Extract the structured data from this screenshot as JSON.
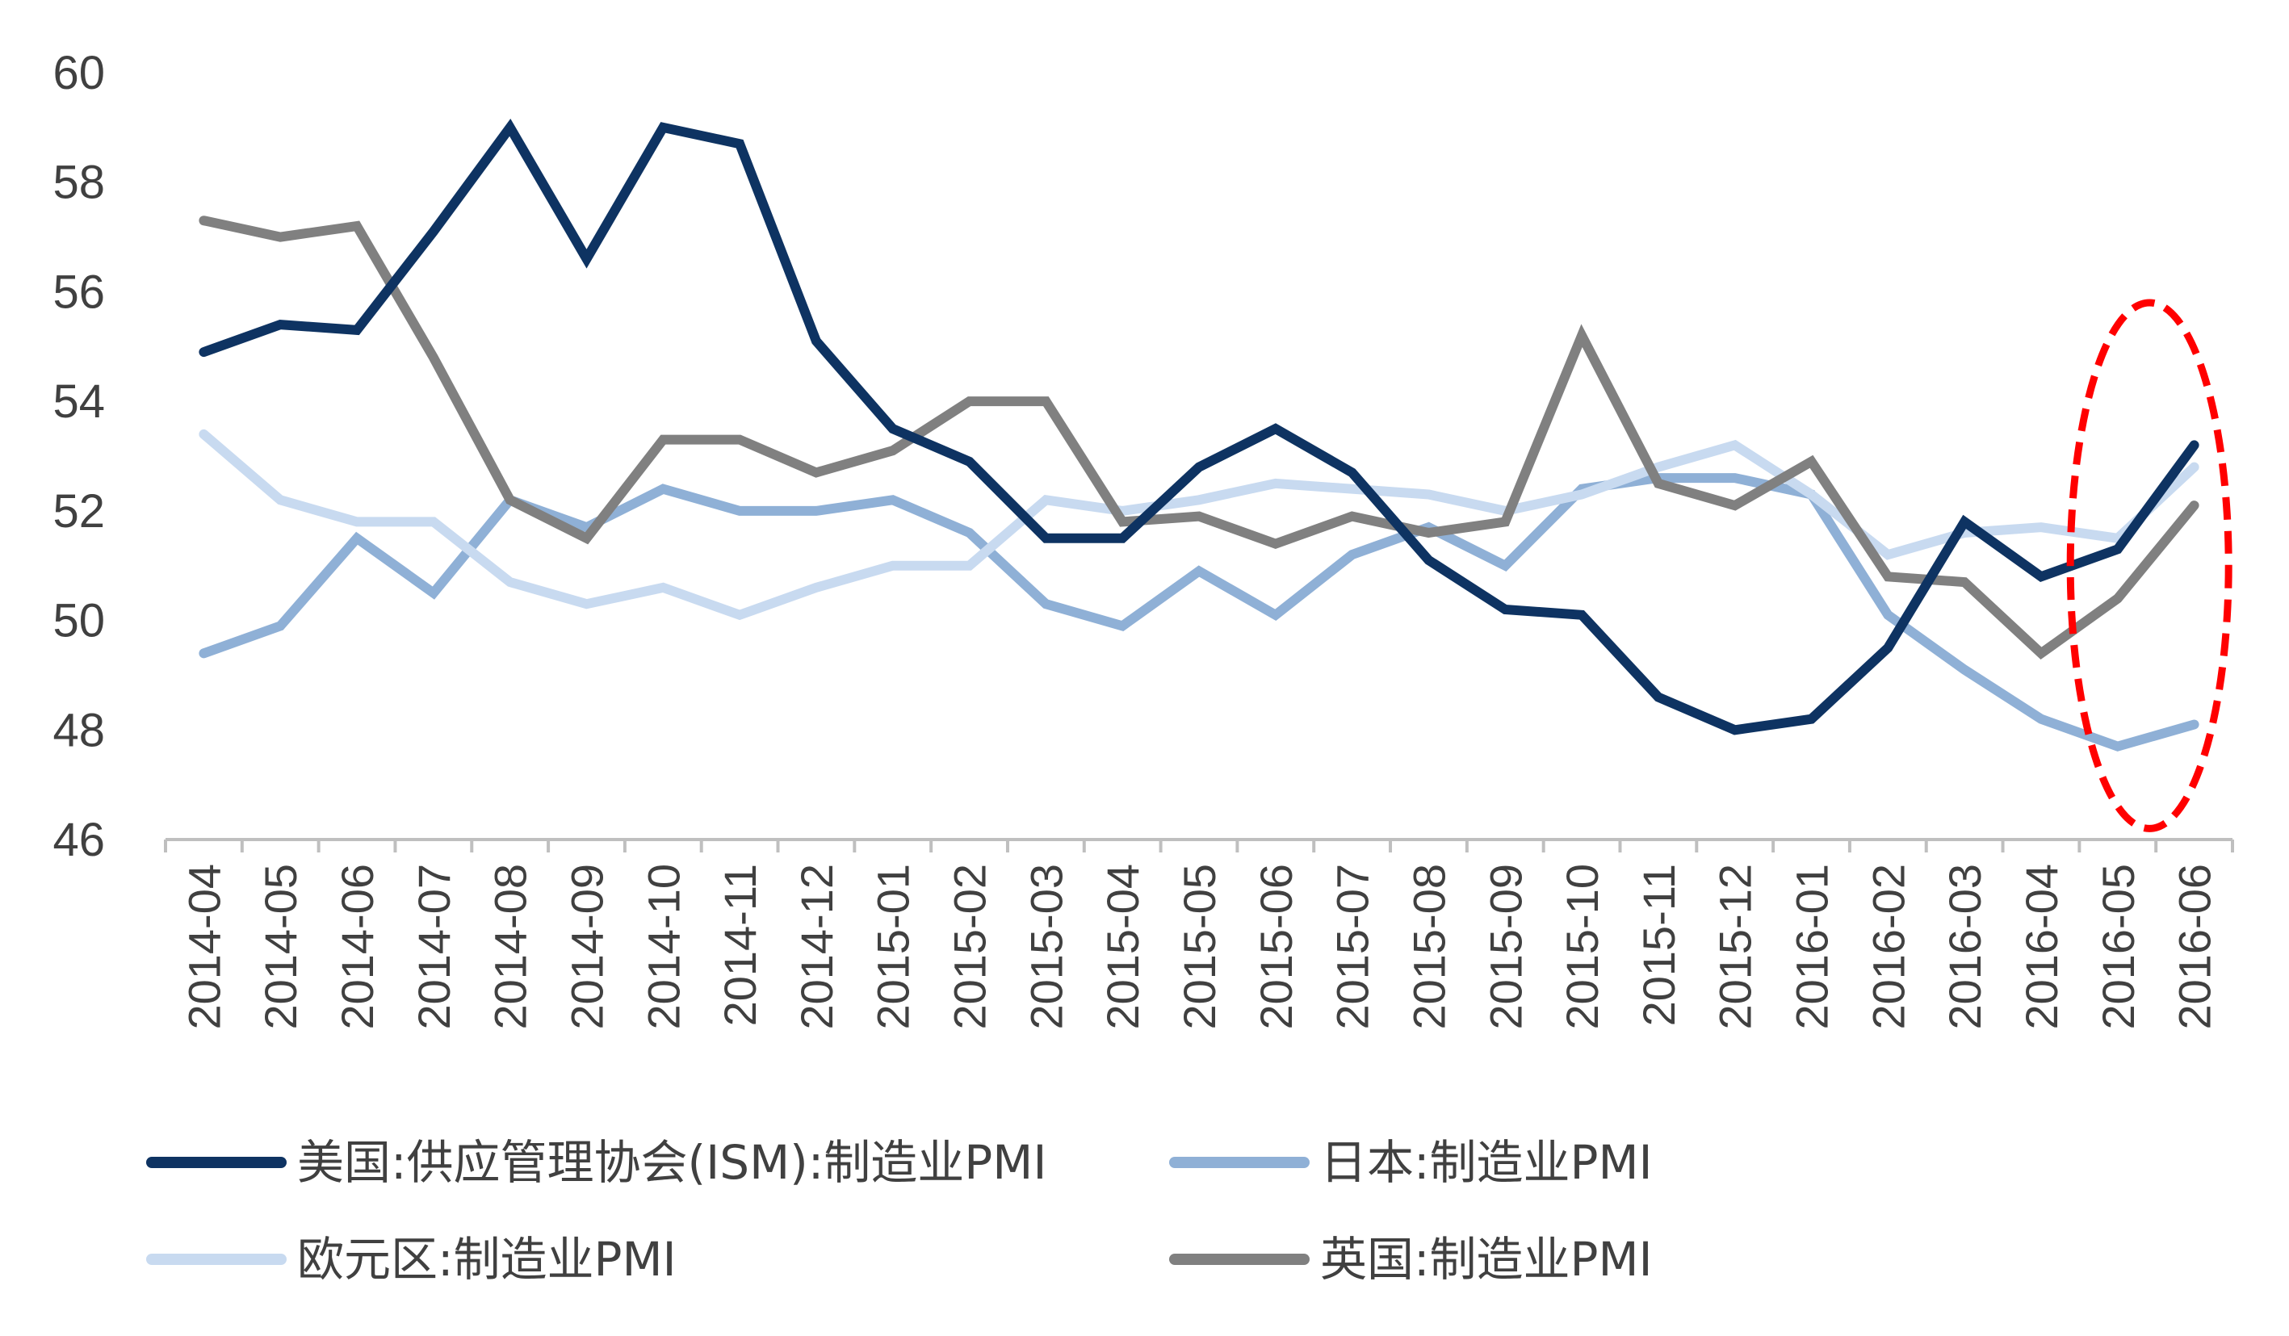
{
  "chart_data": {
    "type": "line",
    "title": "",
    "xlabel": "",
    "ylabel": "",
    "ylim": [
      46,
      60
    ],
    "yticks": [
      "46",
      "48",
      "50",
      "52",
      "54",
      "56",
      "58",
      "60"
    ],
    "categories": [
      "2014-04",
      "2014-05",
      "2014-06",
      "2014-07",
      "2014-08",
      "2014-09",
      "2014-10",
      "2014-11",
      "2014-12",
      "2015-01",
      "2015-02",
      "2015-03",
      "2015-04",
      "2015-05",
      "2015-06",
      "2015-07",
      "2015-08",
      "2015-09",
      "2015-10",
      "2015-11",
      "2015-12",
      "2016-01",
      "2016-02",
      "2016-03",
      "2016-04",
      "2016-05",
      "2016-06"
    ],
    "series": [
      {
        "name": "美国:供应管理协会(ISM):制造业PMI",
        "color": "#0e3362",
        "values": [
          54.9,
          55.4,
          55.3,
          57.1,
          59.0,
          56.6,
          59.0,
          58.7,
          55.1,
          53.5,
          52.9,
          51.5,
          51.5,
          52.8,
          53.5,
          52.7,
          51.1,
          50.2,
          50.1,
          48.6,
          48.0,
          48.2,
          49.5,
          51.8,
          50.8,
          51.3,
          53.2
        ]
      },
      {
        "name": "日本:制造业PMI",
        "color": "#8fb0d6",
        "values": [
          49.4,
          49.9,
          51.5,
          50.5,
          52.2,
          51.7,
          52.4,
          52.0,
          52.0,
          52.2,
          51.6,
          50.3,
          49.9,
          50.9,
          50.1,
          51.2,
          51.7,
          51.0,
          52.4,
          52.6,
          52.6,
          52.3,
          50.1,
          49.1,
          48.2,
          47.7,
          48.1
        ]
      },
      {
        "name": "欧元区:制造业PMI",
        "color": "#c8daf0",
        "values": [
          53.4,
          52.2,
          51.8,
          51.8,
          50.7,
          50.3,
          50.6,
          50.1,
          50.6,
          51.0,
          51.0,
          52.2,
          52.0,
          52.2,
          52.5,
          52.4,
          52.3,
          52.0,
          52.3,
          52.8,
          53.2,
          52.3,
          51.2,
          51.6,
          51.7,
          51.5,
          52.8
        ]
      },
      {
        "name": "英国:制造业PMI",
        "color": "#808080",
        "values": [
          57.3,
          57.0,
          57.2,
          54.8,
          52.2,
          51.5,
          53.3,
          53.3,
          52.7,
          53.1,
          54.0,
          54.0,
          51.8,
          51.9,
          51.4,
          51.9,
          51.6,
          51.8,
          55.2,
          52.5,
          52.1,
          52.9,
          50.8,
          50.7,
          49.4,
          50.4,
          52.1
        ]
      }
    ],
    "annotation": {
      "type": "dashed-ellipse",
      "color": "#ff0000",
      "covers": [
        "2016-05",
        "2016-06"
      ]
    },
    "legend": "bottom"
  }
}
